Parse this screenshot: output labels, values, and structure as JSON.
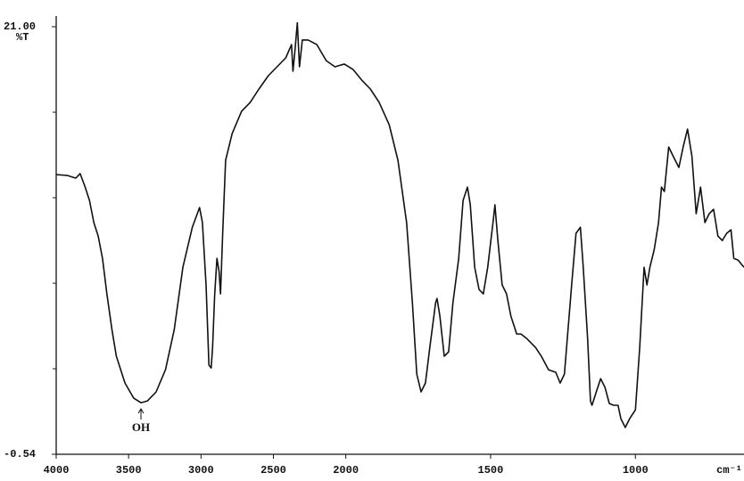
{
  "chart_data": {
    "type": "line",
    "y_label": "%T",
    "x_label": "cm⁻¹",
    "annotations": [
      "OH"
    ],
    "color": "#111111",
    "xlim": [
      4000,
      625
    ],
    "x_expansion": {
      "below": 2000,
      "factor": 2
    },
    "xticks": [
      4000,
      3500,
      3000,
      2500,
      2000,
      1500,
      1000
    ],
    "ylim": [
      -0.54,
      21.0
    ],
    "yticks": [
      -0.54,
      {
        "value": 21.0,
        "label": "21.00"
      }
    ],
    "yminorticks": [
      16.692,
      12.384,
      8.076,
      3.768
    ],
    "x": [
      4000,
      3925,
      3865,
      3835,
      3800,
      3770,
      3740,
      3710,
      3680,
      3650,
      3615,
      3585,
      3525,
      3465,
      3415,
      3370,
      3310,
      3245,
      3185,
      3125,
      3060,
      3010,
      2990,
      2965,
      2945,
      2930,
      2920,
      2905,
      2890,
      2875,
      2865,
      2850,
      2830,
      2785,
      2720,
      2660,
      2600,
      2535,
      2475,
      2415,
      2375,
      2365,
      2350,
      2335,
      2320,
      2300,
      2260,
      2200,
      2135,
      2075,
      2010,
      1975,
      1945,
      1915,
      1885,
      1850,
      1820,
      1790,
      1770,
      1755,
      1740,
      1725,
      1710,
      1690,
      1685,
      1675,
      1660,
      1645,
      1630,
      1610,
      1595,
      1580,
      1570,
      1555,
      1540,
      1525,
      1510,
      1490,
      1485,
      1475,
      1460,
      1445,
      1430,
      1410,
      1395,
      1375,
      1345,
      1325,
      1300,
      1275,
      1260,
      1245,
      1220,
      1205,
      1190,
      1180,
      1165,
      1155,
      1150,
      1135,
      1120,
      1105,
      1090,
      1075,
      1060,
      1050,
      1035,
      1020,
      1000,
      985,
      970,
      960,
      950,
      935,
      920,
      910,
      900,
      885,
      870,
      850,
      835,
      820,
      805,
      790,
      775,
      760,
      745,
      730,
      715,
      700,
      685,
      670,
      660,
      645,
      625
    ],
    "values": [
      13.55,
      13.51,
      13.37,
      13.6,
      12.92,
      12.25,
      11.13,
      10.45,
      9.33,
      7.54,
      5.74,
      4.4,
      3.05,
      2.29,
      2.06,
      2.15,
      2.6,
      3.72,
      5.74,
      8.88,
      10.9,
      11.89,
      11.13,
      7.99,
      3.95,
      3.81,
      4.84,
      7.54,
      9.33,
      8.66,
      7.54,
      10.68,
      14.27,
      15.61,
      16.74,
      17.19,
      17.86,
      18.53,
      18.98,
      19.43,
      20.1,
      18.76,
      19.88,
      21.2,
      18.98,
      20.33,
      20.33,
      20.1,
      19.29,
      18.98,
      19.12,
      18.85,
      18.31,
      17.86,
      17.19,
      16.06,
      14.27,
      11.13,
      7.09,
      3.5,
      2.6,
      3.05,
      4.84,
      7.09,
      7.31,
      6.42,
      4.4,
      4.62,
      7.09,
      9.33,
      12.25,
      12.92,
      12.03,
      8.88,
      7.76,
      7.54,
      8.88,
      11.35,
      12.03,
      10.23,
      7.99,
      7.54,
      6.42,
      5.52,
      5.52,
      5.29,
      4.84,
      4.4,
      3.72,
      3.59,
      3.05,
      3.5,
      7.99,
      10.59,
      10.9,
      8.88,
      5.29,
      2.15,
      1.93,
      2.6,
      3.27,
      2.83,
      2.02,
      1.93,
      1.93,
      1.25,
      0.81,
      1.25,
      1.7,
      4.84,
      8.88,
      7.99,
      8.88,
      9.78,
      11.13,
      12.92,
      12.7,
      14.94,
      14.49,
      13.91,
      14.94,
      15.84,
      14.49,
      11.58,
      12.92,
      11.13,
      11.58,
      11.8,
      10.45,
      10.23,
      10.59,
      10.77,
      9.33,
      9.24,
      8.88
    ]
  }
}
